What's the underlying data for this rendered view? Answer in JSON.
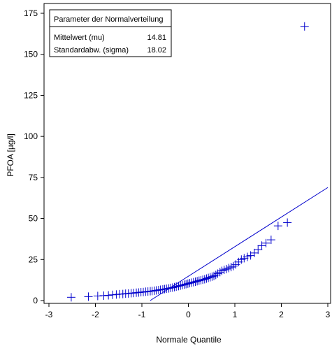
{
  "chart_data": {
    "type": "scatter",
    "xlabel": "Normale Quantile",
    "ylabel": "PFOA [µg/l]",
    "xlim": [
      -3,
      3
    ],
    "ylim": [
      0,
      175
    ],
    "x_ticks": [
      -3,
      -2,
      -1,
      0,
      1,
      2,
      3
    ],
    "y_ticks": [
      0,
      25,
      50,
      75,
      100,
      125,
      150,
      175
    ],
    "legend": {
      "title": "Parameter der Normalverteilung",
      "rows": [
        {
          "label": "Mittelwert (mu)",
          "value": "14.81"
        },
        {
          "label": "Standardabw. (sigma)",
          "value": "18.02"
        }
      ],
      "placement": "top-left"
    },
    "reference_line": {
      "intercept": 14.81,
      "slope": 18.02
    },
    "color": "#0000cc",
    "points": [
      [
        -2.52,
        2.0
      ],
      [
        -2.15,
        2.4
      ],
      [
        -1.95,
        2.8
      ],
      [
        -1.82,
        3.0
      ],
      [
        -1.72,
        3.2
      ],
      [
        -1.63,
        3.5
      ],
      [
        -1.55,
        3.7
      ],
      [
        -1.48,
        3.9
      ],
      [
        -1.41,
        4.0
      ],
      [
        -1.35,
        4.2
      ],
      [
        -1.29,
        4.3
      ],
      [
        -1.23,
        4.5
      ],
      [
        -1.18,
        4.6
      ],
      [
        -1.12,
        4.8
      ],
      [
        -1.07,
        4.9
      ],
      [
        -1.02,
        5.1
      ],
      [
        -0.97,
        5.2
      ],
      [
        -0.92,
        5.4
      ],
      [
        -0.87,
        5.5
      ],
      [
        -0.82,
        5.7
      ],
      [
        -0.78,
        5.8
      ],
      [
        -0.73,
        6.0
      ],
      [
        -0.69,
        6.2
      ],
      [
        -0.64,
        6.4
      ],
      [
        -0.6,
        6.6
      ],
      [
        -0.55,
        6.8
      ],
      [
        -0.51,
        7.0
      ],
      [
        -0.47,
        7.2
      ],
      [
        -0.42,
        7.4
      ],
      [
        -0.38,
        7.7
      ],
      [
        -0.34,
        7.9
      ],
      [
        -0.3,
        8.2
      ],
      [
        -0.26,
        8.5
      ],
      [
        -0.21,
        8.8
      ],
      [
        -0.17,
        9.1
      ],
      [
        -0.13,
        9.4
      ],
      [
        -0.09,
        9.7
      ],
      [
        -0.05,
        10.0
      ],
      [
        -0.01,
        10.3
      ],
      [
        0.03,
        10.6
      ],
      [
        0.07,
        10.9
      ],
      [
        0.11,
        11.2
      ],
      [
        0.15,
        11.5
      ],
      [
        0.19,
        11.8
      ],
      [
        0.23,
        12.1
      ],
      [
        0.27,
        12.4
      ],
      [
        0.31,
        12.7
      ],
      [
        0.35,
        13.0
      ],
      [
        0.39,
        13.4
      ],
      [
        0.43,
        13.8
      ],
      [
        0.47,
        14.2
      ],
      [
        0.51,
        14.6
      ],
      [
        0.55,
        15.0
      ],
      [
        0.59,
        15.6
      ],
      [
        0.63,
        16.4
      ],
      [
        0.68,
        17.3
      ],
      [
        0.72,
        18.1
      ],
      [
        0.77,
        18.7
      ],
      [
        0.82,
        19.2
      ],
      [
        0.87,
        19.8
      ],
      [
        0.92,
        20.4
      ],
      [
        0.97,
        21.0
      ],
      [
        1.02,
        22.0
      ],
      [
        1.08,
        23.5
      ],
      [
        1.14,
        25.0
      ],
      [
        1.2,
        25.8
      ],
      [
        1.27,
        26.6
      ],
      [
        1.34,
        27.5
      ],
      [
        1.42,
        29.0
      ],
      [
        1.5,
        31.0
      ],
      [
        1.58,
        33.5
      ],
      [
        1.67,
        35.0
      ],
      [
        1.78,
        37.0
      ],
      [
        1.93,
        45.5
      ],
      [
        2.13,
        47.5
      ],
      [
        2.5,
        167.0
      ]
    ]
  }
}
